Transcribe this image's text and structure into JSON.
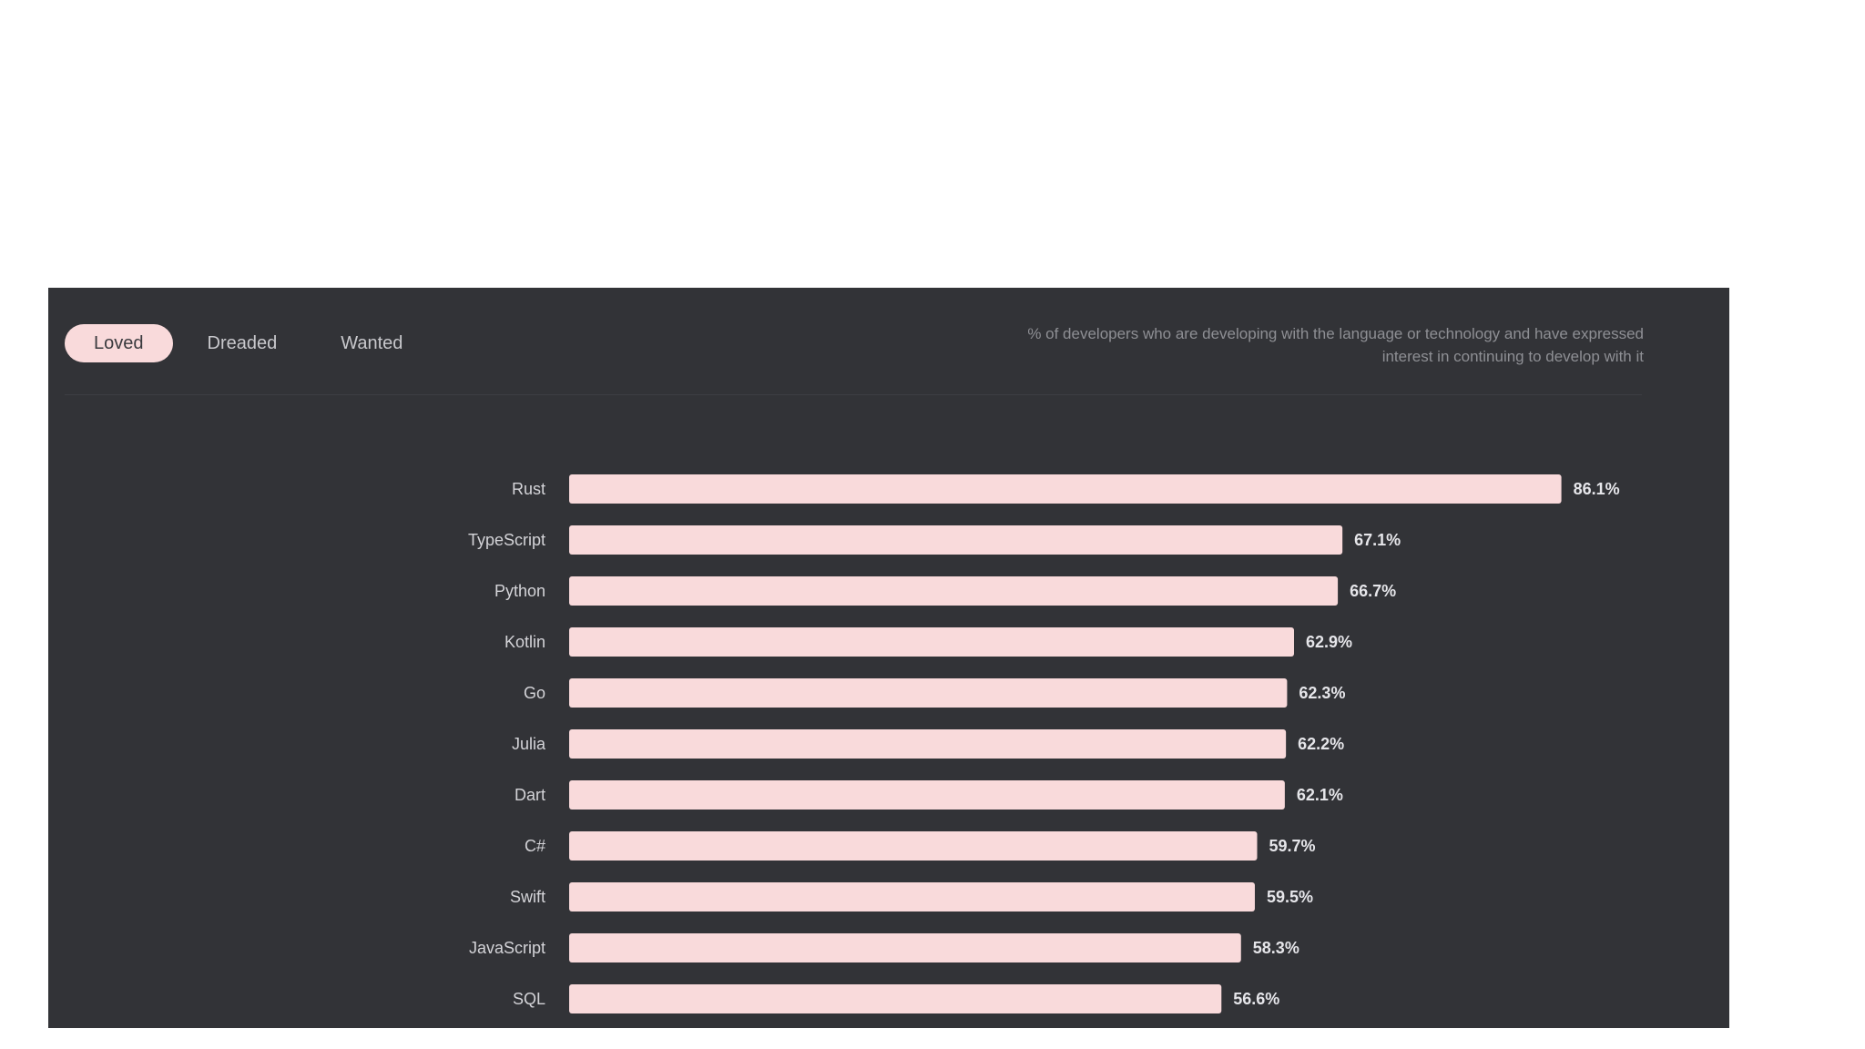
{
  "tabs": [
    {
      "label": "Loved",
      "active": true
    },
    {
      "label": "Dreaded",
      "active": false
    },
    {
      "label": "Wanted",
      "active": false
    }
  ],
  "description": "% of developers who are developing with the language or technology and have expressed interest in continuing to develop with it",
  "colors": {
    "panel_background": "#323337",
    "bar_fill": "#f9dadb",
    "active_tab": "#f9dadb"
  },
  "chart_data": {
    "type": "bar",
    "orientation": "horizontal",
    "categories": [
      "Rust",
      "TypeScript",
      "Python",
      "Kotlin",
      "Go",
      "Julia",
      "Dart",
      "C#",
      "Swift",
      "JavaScript",
      "SQL"
    ],
    "values": [
      86.1,
      67.1,
      66.7,
      62.9,
      62.3,
      62.2,
      62.1,
      59.7,
      59.5,
      58.3,
      56.6
    ],
    "value_labels": [
      "86.1%",
      "67.1%",
      "66.7%",
      "62.9%",
      "62.3%",
      "62.2%",
      "62.1%",
      "59.7%",
      "59.5%",
      "58.3%",
      "56.6%"
    ],
    "xlim": [
      0,
      100
    ],
    "grid": false
  }
}
